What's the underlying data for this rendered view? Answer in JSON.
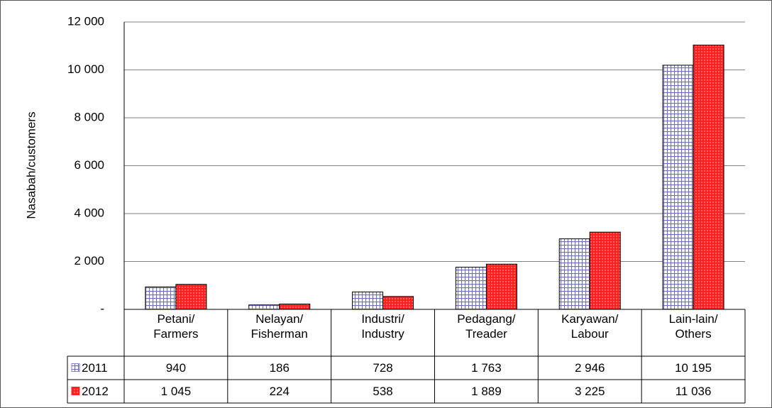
{
  "chart_data": {
    "type": "bar",
    "y_label": "Nasabah/customers",
    "categories": [
      "Petani/\nFarmers",
      "Nelayan/\nFisherman",
      "Industri/\nIndustry",
      "Pedagang/\nTreader",
      "Karyawan/\nLabour",
      "Lain-lain/\nOthers"
    ],
    "series": [
      {
        "name": "2011",
        "color": "#8080c0",
        "values": [
          940,
          186,
          728,
          1763,
          2946,
          10195
        ],
        "value_labels": [
          "940",
          "186",
          "728",
          "1 763",
          "2 946",
          "10 195"
        ]
      },
      {
        "name": "2012",
        "color": "#ff2020",
        "values": [
          1045,
          224,
          538,
          1889,
          3225,
          11036
        ],
        "value_labels": [
          "1 045",
          "224",
          "538",
          "1 889",
          "3 225",
          "11 036"
        ]
      }
    ],
    "ylim": [
      0,
      12000
    ],
    "yticks": [
      {
        "value": 0,
        "label": "-"
      },
      {
        "value": 2000,
        "label": "2 000"
      },
      {
        "value": 4000,
        "label": "4 000"
      },
      {
        "value": 6000,
        "label": "6 000"
      },
      {
        "value": 8000,
        "label": "8 000"
      },
      {
        "value": 10000,
        "label": "10 000"
      },
      {
        "value": 12000,
        "label": "12 000"
      }
    ],
    "grid": true
  }
}
